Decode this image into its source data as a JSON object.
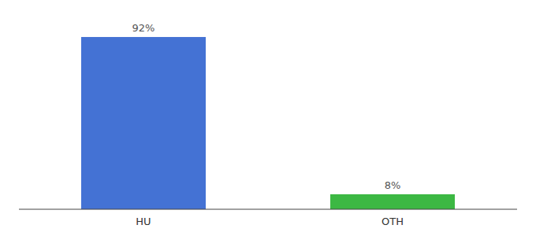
{
  "chart_data": {
    "type": "bar",
    "categories": [
      "HU",
      "OTH"
    ],
    "values": [
      92,
      8
    ],
    "value_labels": [
      "92%",
      "8%"
    ],
    "colors": [
      "#4472d4",
      "#3cb843"
    ],
    "ylim": [
      0,
      100
    ],
    "data_labels": true,
    "tick_labels": "x",
    "grid": false
  }
}
